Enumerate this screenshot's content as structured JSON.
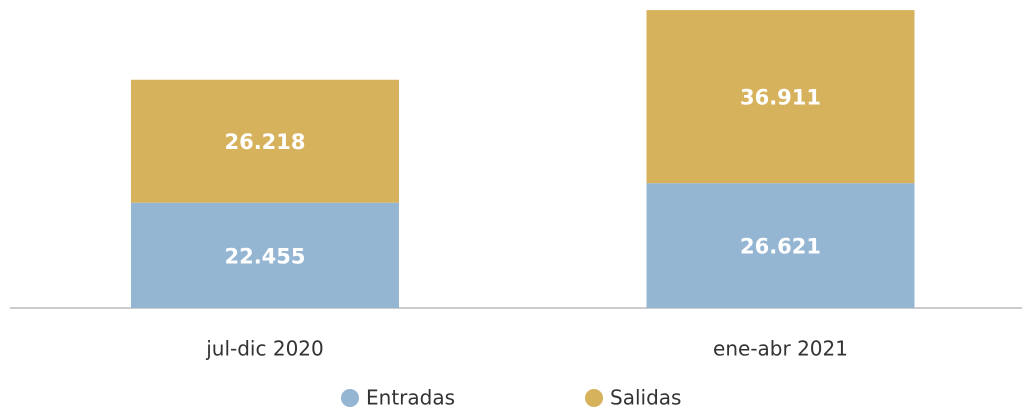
{
  "chart_data": {
    "type": "stacked_bar",
    "categories": [
      "jul-dic 2020",
      "ene-abr 2021"
    ],
    "series": [
      {
        "name": "Entradas",
        "color": "#95b6d3",
        "values": [
          22455,
          26621
        ],
        "value_labels": [
          "22.455",
          "26.621"
        ]
      },
      {
        "name": "Salidas",
        "color": "#d7b25c",
        "values": [
          26218,
          36911
        ],
        "value_labels": [
          "26.218",
          "36.911"
        ]
      }
    ],
    "ylim": [
      0,
      65000
    ]
  }
}
